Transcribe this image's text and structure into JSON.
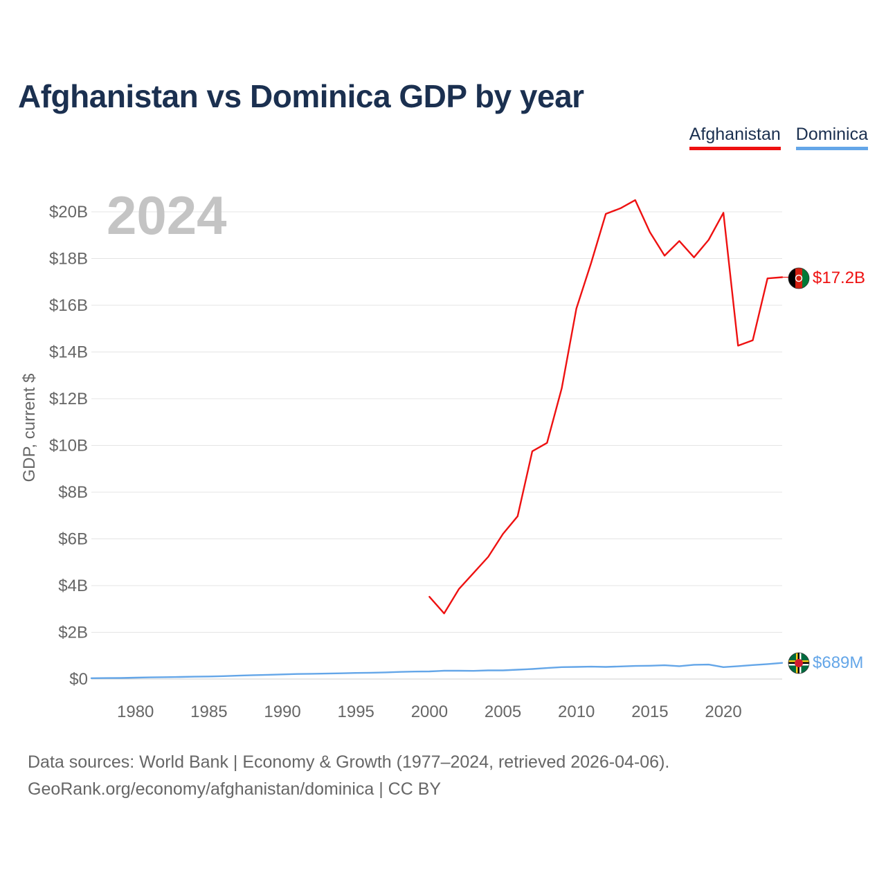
{
  "title": "Afghanistan vs Dominica GDP by year",
  "legend": [
    {
      "label": "Afghanistan",
      "color": "#ee1111"
    },
    {
      "label": "Dominica",
      "color": "#64a6e8"
    }
  ],
  "year_watermark": "2024",
  "source": {
    "line1": "Data sources: World Bank | Economy & Growth (1977–2024, retrieved 2026-04-06).",
    "line2": "GeoRank.org/economy/afghanistan/dominica | CC BY"
  },
  "colors": {
    "afghanistan": "#ee1111",
    "dominica": "#64a6e8",
    "grid": "#e4e4e4",
    "axis_text": "#666666",
    "title": "#1b3050",
    "watermark": "#c4c4c4"
  },
  "chart_data": {
    "type": "line",
    "title": "Afghanistan vs Dominica GDP by year",
    "xlabel": "",
    "ylabel": "GDP, current $",
    "xlim": [
      1977,
      2024
    ],
    "ylim": [
      0,
      20
    ],
    "y_unit": "billions USD",
    "x_ticks": [
      1980,
      1985,
      1990,
      1995,
      2000,
      2005,
      2010,
      2015,
      2020
    ],
    "x_tick_labels": [
      "1980",
      "1985",
      "1990",
      "1995",
      "2000",
      "2005",
      "2010",
      "2015",
      "2020"
    ],
    "y_ticks": [
      0,
      2,
      4,
      6,
      8,
      10,
      12,
      14,
      16,
      18,
      20
    ],
    "y_tick_labels": [
      "$0",
      "$2B",
      "$4B",
      "$6B",
      "$8B",
      "$10B",
      "$12B",
      "$14B",
      "$16B",
      "$18B",
      "$20B"
    ],
    "grid": true,
    "legend_position": "top-right",
    "series": [
      {
        "name": "Afghanistan",
        "color": "#ee1111",
        "end_label": "$17.2B",
        "end_icon": "afghanistan-flag-icon",
        "x": [
          2000,
          2001,
          2002,
          2003,
          2004,
          2005,
          2006,
          2007,
          2008,
          2009,
          2010,
          2011,
          2012,
          2013,
          2014,
          2015,
          2016,
          2017,
          2018,
          2019,
          2020,
          2021,
          2022,
          2023,
          2024
        ],
        "values": [
          3.52,
          2.81,
          3.85,
          4.54,
          5.23,
          6.21,
          6.97,
          9.75,
          10.11,
          12.44,
          15.86,
          17.81,
          19.91,
          20.15,
          20.5,
          19.13,
          18.12,
          18.75,
          18.05,
          18.8,
          19.96,
          14.27,
          14.5,
          17.15,
          17.2
        ]
      },
      {
        "name": "Dominica",
        "color": "#64a6e8",
        "end_label": "$689M",
        "end_icon": "dominica-flag-icon",
        "x": [
          1977,
          1978,
          1979,
          1980,
          1981,
          1982,
          1983,
          1984,
          1985,
          1986,
          1987,
          1988,
          1989,
          1990,
          1991,
          1992,
          1993,
          1994,
          1995,
          1996,
          1997,
          1998,
          1999,
          2000,
          2001,
          2002,
          2003,
          2004,
          2005,
          2006,
          2007,
          2008,
          2009,
          2010,
          2011,
          2012,
          2013,
          2014,
          2015,
          2016,
          2017,
          2018,
          2019,
          2020,
          2021,
          2022,
          2023,
          2024
        ],
        "values": [
          0.035,
          0.04,
          0.045,
          0.06,
          0.07,
          0.08,
          0.09,
          0.1,
          0.11,
          0.125,
          0.145,
          0.165,
          0.18,
          0.2,
          0.215,
          0.225,
          0.235,
          0.245,
          0.26,
          0.27,
          0.285,
          0.305,
          0.32,
          0.325,
          0.355,
          0.355,
          0.35,
          0.37,
          0.37,
          0.4,
          0.43,
          0.47,
          0.51,
          0.52,
          0.53,
          0.52,
          0.54,
          0.56,
          0.57,
          0.59,
          0.55,
          0.61,
          0.62,
          0.51,
          0.55,
          0.6,
          0.64,
          0.689
        ]
      }
    ]
  }
}
